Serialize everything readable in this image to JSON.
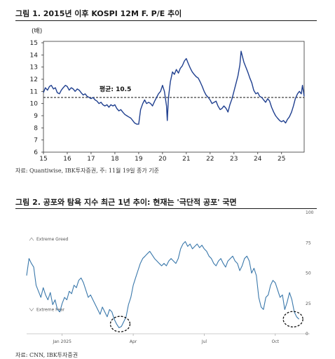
{
  "chart_data": [
    {
      "type": "line",
      "title": "그림 1. 2015년 이후 KOSPI 12M F. P/E 추이",
      "ylabel": "(배)",
      "source": "자료: Quantiwise, IBK투자증권, 주: 11월 19일 종가 기준",
      "x_ticks": [
        "15",
        "16",
        "17",
        "18",
        "19",
        "20",
        "21",
        "22",
        "23",
        "24",
        "25"
      ],
      "y_ticks": [
        6,
        7,
        8,
        9,
        10,
        11,
        12,
        13,
        14,
        15
      ],
      "ylim": [
        6,
        15
      ],
      "xlim": [
        2015.0,
        2025.95
      ],
      "average": {
        "label": "평균: 10.5",
        "value": 10.5
      },
      "series": [
        {
          "color": "#1f3f8f",
          "points": [
            [
              2015.0,
              10.9
            ],
            [
              2015.08,
              11.3
            ],
            [
              2015.17,
              11.1
            ],
            [
              2015.25,
              11.4
            ],
            [
              2015.33,
              11.5
            ],
            [
              2015.42,
              11.2
            ],
            [
              2015.5,
              11.3
            ],
            [
              2015.58,
              10.9
            ],
            [
              2015.67,
              10.8
            ],
            [
              2015.75,
              11.1
            ],
            [
              2015.83,
              11.3
            ],
            [
              2015.92,
              11.5
            ],
            [
              2016.0,
              11.4
            ],
            [
              2016.08,
              11.1
            ],
            [
              2016.17,
              11.3
            ],
            [
              2016.25,
              11.2
            ],
            [
              2016.33,
              11.0
            ],
            [
              2016.42,
              11.2
            ],
            [
              2016.5,
              11.1
            ],
            [
              2016.58,
              10.9
            ],
            [
              2016.67,
              10.7
            ],
            [
              2016.75,
              10.8
            ],
            [
              2016.83,
              10.6
            ],
            [
              2016.92,
              10.5
            ],
            [
              2017.0,
              10.4
            ],
            [
              2017.08,
              10.5
            ],
            [
              2017.17,
              10.3
            ],
            [
              2017.25,
              10.2
            ],
            [
              2017.33,
              10.0
            ],
            [
              2017.42,
              10.1
            ],
            [
              2017.5,
              9.9
            ],
            [
              2017.58,
              9.8
            ],
            [
              2017.67,
              9.9
            ],
            [
              2017.75,
              9.7
            ],
            [
              2017.83,
              9.9
            ],
            [
              2017.92,
              9.8
            ],
            [
              2018.0,
              9.9
            ],
            [
              2018.08,
              9.6
            ],
            [
              2018.17,
              9.4
            ],
            [
              2018.25,
              9.5
            ],
            [
              2018.33,
              9.3
            ],
            [
              2018.42,
              9.1
            ],
            [
              2018.5,
              9.0
            ],
            [
              2018.58,
              8.9
            ],
            [
              2018.67,
              8.8
            ],
            [
              2018.75,
              8.6
            ],
            [
              2018.83,
              8.4
            ],
            [
              2018.92,
              8.3
            ],
            [
              2019.0,
              8.3
            ],
            [
              2019.08,
              9.5
            ],
            [
              2019.17,
              10.0
            ],
            [
              2019.25,
              10.3
            ],
            [
              2019.33,
              10.0
            ],
            [
              2019.42,
              10.1
            ],
            [
              2019.5,
              10.0
            ],
            [
              2019.58,
              9.8
            ],
            [
              2019.67,
              10.2
            ],
            [
              2019.75,
              10.5
            ],
            [
              2019.83,
              10.8
            ],
            [
              2019.92,
              11.0
            ],
            [
              2020.0,
              11.5
            ],
            [
              2020.08,
              11.0
            ],
            [
              2020.17,
              9.8
            ],
            [
              2020.2,
              8.6
            ],
            [
              2020.25,
              10.5
            ],
            [
              2020.33,
              11.8
            ],
            [
              2020.42,
              12.6
            ],
            [
              2020.5,
              12.4
            ],
            [
              2020.58,
              12.8
            ],
            [
              2020.67,
              12.5
            ],
            [
              2020.75,
              12.9
            ],
            [
              2020.83,
              13.1
            ],
            [
              2020.92,
              13.5
            ],
            [
              2021.0,
              13.7
            ],
            [
              2021.08,
              13.3
            ],
            [
              2021.17,
              12.9
            ],
            [
              2021.25,
              12.6
            ],
            [
              2021.33,
              12.4
            ],
            [
              2021.42,
              12.2
            ],
            [
              2021.5,
              12.1
            ],
            [
              2021.58,
              11.8
            ],
            [
              2021.67,
              11.4
            ],
            [
              2021.75,
              11.0
            ],
            [
              2021.83,
              10.7
            ],
            [
              2021.92,
              10.5
            ],
            [
              2022.0,
              10.3
            ],
            [
              2022.08,
              10.0
            ],
            [
              2022.17,
              10.1
            ],
            [
              2022.25,
              10.2
            ],
            [
              2022.33,
              9.8
            ],
            [
              2022.42,
              9.5
            ],
            [
              2022.5,
              9.6
            ],
            [
              2022.58,
              9.8
            ],
            [
              2022.67,
              9.6
            ],
            [
              2022.75,
              9.3
            ],
            [
              2022.83,
              9.9
            ],
            [
              2022.92,
              10.4
            ],
            [
              2023.0,
              11.0
            ],
            [
              2023.08,
              11.6
            ],
            [
              2023.17,
              12.3
            ],
            [
              2023.25,
              13.2
            ],
            [
              2023.3,
              14.3
            ],
            [
              2023.42,
              13.4
            ],
            [
              2023.5,
              13.0
            ],
            [
              2023.58,
              12.6
            ],
            [
              2023.67,
              12.1
            ],
            [
              2023.75,
              11.7
            ],
            [
              2023.83,
              11.1
            ],
            [
              2023.92,
              10.8
            ],
            [
              2024.0,
              10.9
            ],
            [
              2024.08,
              10.6
            ],
            [
              2024.17,
              10.5
            ],
            [
              2024.25,
              10.3
            ],
            [
              2024.33,
              10.1
            ],
            [
              2024.42,
              10.4
            ],
            [
              2024.5,
              10.2
            ],
            [
              2024.58,
              9.7
            ],
            [
              2024.67,
              9.3
            ],
            [
              2024.75,
              9.0
            ],
            [
              2024.83,
              8.8
            ],
            [
              2024.92,
              8.6
            ],
            [
              2025.0,
              8.5
            ],
            [
              2025.08,
              8.6
            ],
            [
              2025.17,
              8.4
            ],
            [
              2025.25,
              8.7
            ],
            [
              2025.33,
              8.9
            ],
            [
              2025.42,
              9.3
            ],
            [
              2025.5,
              9.8
            ],
            [
              2025.58,
              10.4
            ],
            [
              2025.67,
              10.8
            ],
            [
              2025.75,
              11.0
            ],
            [
              2025.83,
              10.8
            ],
            [
              2025.88,
              11.5
            ],
            [
              2025.95,
              10.6
            ]
          ]
        }
      ]
    },
    {
      "type": "line",
      "title": "그림 2. 공포와 탐욕 지수 최근 1년 추이: 현재는 '극단적 공포' 국면",
      "source": "자료: CNN, IBK투자증권",
      "x_ticks": [
        {
          "label": "Jan 2025",
          "x": 1.5
        },
        {
          "label": "Apr",
          "x": 4.5
        },
        {
          "label": "Jul",
          "x": 7.5
        },
        {
          "label": "Oct",
          "x": 10.5
        }
      ],
      "y_ticks": [
        0,
        25,
        50,
        75,
        100
      ],
      "ylim": [
        0,
        100
      ],
      "xlim": [
        0,
        11.6
      ],
      "annotations": [
        {
          "label": "Extreme Greed",
          "y": 78
        },
        {
          "label": "Extreme Fear",
          "y": 20
        }
      ],
      "series": [
        {
          "color": "#3a78ab",
          "points": [
            [
              0.0,
              48
            ],
            [
              0.1,
              62
            ],
            [
              0.2,
              58
            ],
            [
              0.3,
              55
            ],
            [
              0.4,
              40
            ],
            [
              0.5,
              35
            ],
            [
              0.6,
              30
            ],
            [
              0.7,
              38
            ],
            [
              0.8,
              32
            ],
            [
              0.9,
              28
            ],
            [
              1.0,
              34
            ],
            [
              1.1,
              24
            ],
            [
              1.2,
              28
            ],
            [
              1.3,
              20
            ],
            [
              1.4,
              18
            ],
            [
              1.5,
              25
            ],
            [
              1.6,
              30
            ],
            [
              1.7,
              28
            ],
            [
              1.8,
              35
            ],
            [
              1.9,
              33
            ],
            [
              2.0,
              40
            ],
            [
              2.1,
              38
            ],
            [
              2.2,
              44
            ],
            [
              2.3,
              46
            ],
            [
              2.4,
              42
            ],
            [
              2.5,
              36
            ],
            [
              2.6,
              30
            ],
            [
              2.7,
              32
            ],
            [
              2.8,
              28
            ],
            [
              2.9,
              24
            ],
            [
              3.0,
              20
            ],
            [
              3.1,
              16
            ],
            [
              3.2,
              22
            ],
            [
              3.3,
              18
            ],
            [
              3.4,
              14
            ],
            [
              3.5,
              20
            ],
            [
              3.6,
              18
            ],
            [
              3.7,
              12
            ],
            [
              3.8,
              8
            ],
            [
              3.9,
              5
            ],
            [
              4.0,
              6
            ],
            [
              4.1,
              10
            ],
            [
              4.2,
              14
            ],
            [
              4.3,
              24
            ],
            [
              4.4,
              30
            ],
            [
              4.5,
              40
            ],
            [
              4.6,
              46
            ],
            [
              4.7,
              52
            ],
            [
              4.8,
              58
            ],
            [
              4.9,
              62
            ],
            [
              5.0,
              64
            ],
            [
              5.1,
              66
            ],
            [
              5.2,
              68
            ],
            [
              5.3,
              65
            ],
            [
              5.4,
              62
            ],
            [
              5.5,
              60
            ],
            [
              5.6,
              58
            ],
            [
              5.7,
              56
            ],
            [
              5.8,
              58
            ],
            [
              5.9,
              56
            ],
            [
              6.0,
              60
            ],
            [
              6.1,
              62
            ],
            [
              6.2,
              60
            ],
            [
              6.3,
              58
            ],
            [
              6.4,
              62
            ],
            [
              6.5,
              70
            ],
            [
              6.6,
              74
            ],
            [
              6.7,
              76
            ],
            [
              6.8,
              72
            ],
            [
              6.9,
              74
            ],
            [
              7.0,
              70
            ],
            [
              7.1,
              72
            ],
            [
              7.2,
              74
            ],
            [
              7.3,
              71
            ],
            [
              7.4,
              73
            ],
            [
              7.5,
              70
            ],
            [
              7.6,
              68
            ],
            [
              7.7,
              64
            ],
            [
              7.8,
              62
            ],
            [
              7.9,
              58
            ],
            [
              8.0,
              56
            ],
            [
              8.1,
              60
            ],
            [
              8.2,
              62
            ],
            [
              8.3,
              58
            ],
            [
              8.4,
              55
            ],
            [
              8.5,
              60
            ],
            [
              8.6,
              62
            ],
            [
              8.7,
              64
            ],
            [
              8.8,
              60
            ],
            [
              8.9,
              58
            ],
            [
              9.0,
              52
            ],
            [
              9.1,
              56
            ],
            [
              9.2,
              62
            ],
            [
              9.3,
              64
            ],
            [
              9.4,
              60
            ],
            [
              9.5,
              50
            ],
            [
              9.6,
              54
            ],
            [
              9.7,
              48
            ],
            [
              9.8,
              30
            ],
            [
              9.9,
              22
            ],
            [
              10.0,
              20
            ],
            [
              10.1,
              30
            ],
            [
              10.2,
              32
            ],
            [
              10.3,
              40
            ],
            [
              10.4,
              44
            ],
            [
              10.5,
              42
            ],
            [
              10.6,
              36
            ],
            [
              10.7,
              30
            ],
            [
              10.8,
              32
            ],
            [
              10.9,
              20
            ],
            [
              11.0,
              26
            ],
            [
              11.1,
              34
            ],
            [
              11.2,
              28
            ],
            [
              11.3,
              18
            ],
            [
              11.4,
              14
            ],
            [
              11.5,
              12
            ]
          ]
        }
      ],
      "highlights": [
        {
          "x": 3.95,
          "y": 8
        },
        {
          "x": 11.25,
          "y": 12
        }
      ]
    }
  ]
}
